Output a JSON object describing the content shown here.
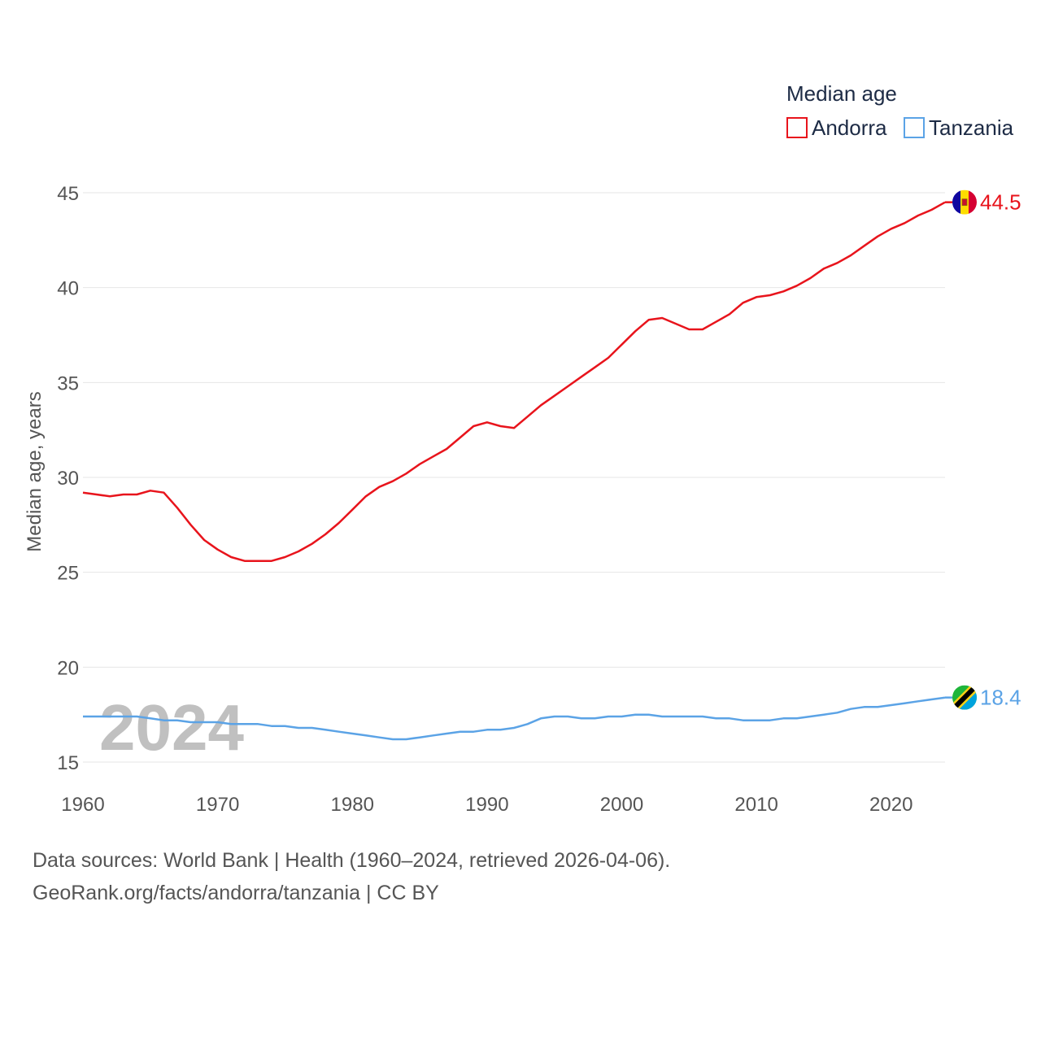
{
  "chart_data": {
    "type": "line",
    "legend_title": "Median age",
    "ylabel": "Median age, years",
    "xlabel": "",
    "xlim": [
      1960,
      2024
    ],
    "ylim": [
      15,
      45
    ],
    "x_ticks": [
      1960,
      1970,
      1980,
      1990,
      2000,
      2010,
      2020
    ],
    "y_ticks": [
      15,
      20,
      25,
      30,
      35,
      40,
      45
    ],
    "watermark_year": "2024",
    "legend_placement": "top-right",
    "series": [
      {
        "name": "Andorra",
        "color": "#e8141c",
        "end_label": "44.5",
        "flag": "andorra-flag",
        "x": [
          1960,
          1961,
          1962,
          1963,
          1964,
          1965,
          1966,
          1967,
          1968,
          1969,
          1970,
          1971,
          1972,
          1973,
          1974,
          1975,
          1976,
          1977,
          1978,
          1979,
          1980,
          1981,
          1982,
          1983,
          1984,
          1985,
          1986,
          1987,
          1988,
          1989,
          1990,
          1991,
          1992,
          1993,
          1994,
          1995,
          1996,
          1997,
          1998,
          1999,
          2000,
          2001,
          2002,
          2003,
          2004,
          2005,
          2006,
          2007,
          2008,
          2009,
          2010,
          2011,
          2012,
          2013,
          2014,
          2015,
          2016,
          2017,
          2018,
          2019,
          2020,
          2021,
          2022,
          2023,
          2024
        ],
        "values": [
          29.2,
          29.1,
          29.0,
          29.1,
          29.1,
          29.3,
          29.2,
          28.4,
          27.5,
          26.7,
          26.2,
          25.8,
          25.6,
          25.6,
          25.6,
          25.8,
          26.1,
          26.5,
          27.0,
          27.6,
          28.3,
          29.0,
          29.5,
          29.8,
          30.2,
          30.7,
          31.1,
          31.5,
          32.1,
          32.7,
          32.9,
          32.7,
          32.6,
          33.2,
          33.8,
          34.3,
          34.8,
          35.3,
          35.8,
          36.3,
          37.0,
          37.7,
          38.3,
          38.4,
          38.1,
          37.8,
          37.8,
          38.2,
          38.6,
          39.2,
          39.5,
          39.6,
          39.8,
          40.1,
          40.5,
          41.0,
          41.3,
          41.7,
          42.2,
          42.7,
          43.1,
          43.4,
          43.8,
          44.1,
          44.5
        ]
      },
      {
        "name": "Tanzania",
        "color": "#5ba3e6",
        "end_label": "18.4",
        "flag": "tanzania-flag",
        "x": [
          1960,
          1961,
          1962,
          1963,
          1964,
          1965,
          1966,
          1967,
          1968,
          1969,
          1970,
          1971,
          1972,
          1973,
          1974,
          1975,
          1976,
          1977,
          1978,
          1979,
          1980,
          1981,
          1982,
          1983,
          1984,
          1985,
          1986,
          1987,
          1988,
          1989,
          1990,
          1991,
          1992,
          1993,
          1994,
          1995,
          1996,
          1997,
          1998,
          1999,
          2000,
          2001,
          2002,
          2003,
          2004,
          2005,
          2006,
          2007,
          2008,
          2009,
          2010,
          2011,
          2012,
          2013,
          2014,
          2015,
          2016,
          2017,
          2018,
          2019,
          2020,
          2021,
          2022,
          2023,
          2024
        ],
        "values": [
          17.4,
          17.4,
          17.4,
          17.4,
          17.4,
          17.3,
          17.2,
          17.2,
          17.1,
          17.1,
          17.1,
          17.0,
          17.0,
          17.0,
          16.9,
          16.9,
          16.8,
          16.8,
          16.7,
          16.6,
          16.5,
          16.4,
          16.3,
          16.2,
          16.2,
          16.3,
          16.4,
          16.5,
          16.6,
          16.6,
          16.7,
          16.7,
          16.8,
          17.0,
          17.3,
          17.4,
          17.4,
          17.3,
          17.3,
          17.4,
          17.4,
          17.5,
          17.5,
          17.4,
          17.4,
          17.4,
          17.4,
          17.3,
          17.3,
          17.2,
          17.2,
          17.2,
          17.3,
          17.3,
          17.4,
          17.5,
          17.6,
          17.8,
          17.9,
          17.9,
          18.0,
          18.1,
          18.2,
          18.3,
          18.4
        ]
      }
    ]
  },
  "footer": {
    "line1": "Data sources: World Bank | Health (1960–2024, retrieved 2026-04-06).",
    "line2": "GeoRank.org/facts/andorra/tanzania | CC BY"
  }
}
